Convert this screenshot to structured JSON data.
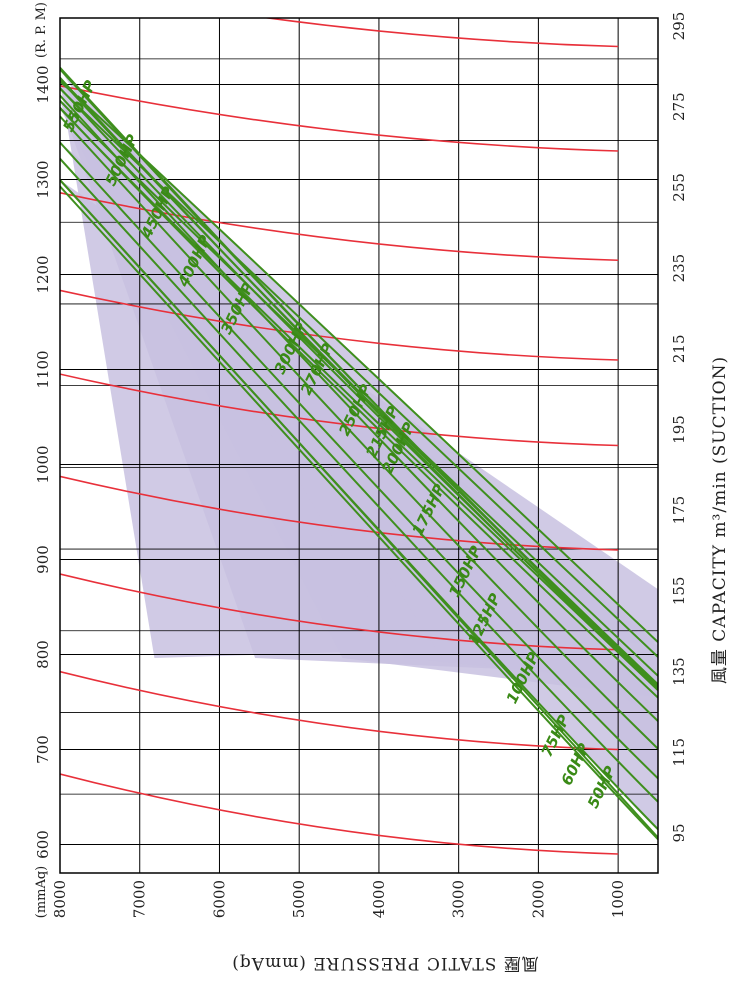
{
  "chart_data": {
    "type": "line",
    "layout": "rotated-90",
    "axes": {
      "rpm": {
        "label": "(R. P. M)",
        "ticks": [
          600,
          700,
          800,
          900,
          1000,
          1100,
          1200,
          1300,
          1400
        ],
        "range": [
          570,
          1470
        ]
      },
      "pressure": {
        "unit": "(mmAq)",
        "label": "風壓  STATIC  PRESSURE (mmAq)",
        "ticks": [
          8000,
          7000,
          6000,
          5000,
          4000,
          3000,
          2000,
          1000
        ],
        "range": [
          500,
          8000
        ]
      },
      "capacity": {
        "label": "風量 CAPACITY m³/min (SUCTION)",
        "ticks": [
          95,
          115,
          135,
          155,
          175,
          195,
          215,
          235,
          255,
          275,
          295
        ]
      }
    },
    "grid": true,
    "shaded_color": "#c8c1e0",
    "grid_color": "#000000",
    "rpm_curve_color": "#e8303a",
    "power_curve_color": "#3f8f1e",
    "rpm_curves": [
      590,
      700,
      805,
      910,
      1020,
      1110,
      1215,
      1330,
      1440
    ],
    "power_curves": [
      {
        "name": "550HP",
        "label_rpm": 1375,
        "label_pressure": 7700
      },
      {
        "name": "500HP",
        "label_rpm": 1318,
        "label_pressure": 7170
      },
      {
        "name": "450HP",
        "label_rpm": 1263,
        "label_pressure": 6720
      },
      {
        "name": "400HP",
        "label_rpm": 1212,
        "label_pressure": 6260
      },
      {
        "name": "350HP",
        "label_rpm": 1162,
        "label_pressure": 5720
      },
      {
        "name": "300HP",
        "label_rpm": 1120,
        "label_pressure": 5050
      },
      {
        "name": "270HP",
        "label_rpm": 1098,
        "label_pressure": 4720
      },
      {
        "name": "250HP",
        "label_rpm": 1055,
        "label_pressure": 4240
      },
      {
        "name": "215HP",
        "label_rpm": 1032,
        "label_pressure": 3900
      },
      {
        "name": "200HP",
        "label_rpm": 1015,
        "label_pressure": 3700
      },
      {
        "name": "175HP",
        "label_rpm": 950,
        "label_pressure": 3320
      },
      {
        "name": "150HP",
        "label_rpm": 885,
        "label_pressure": 2860
      },
      {
        "name": "125HP",
        "label_rpm": 835,
        "label_pressure": 2620
      },
      {
        "name": "100HP",
        "label_rpm": 773,
        "label_pressure": 2140
      },
      {
        "name": "75HP",
        "label_rpm": 712,
        "label_pressure": 1730
      },
      {
        "name": "60HP",
        "label_rpm": 682,
        "label_pressure": 1480
      },
      {
        "name": "50HP",
        "label_rpm": 658,
        "label_pressure": 1150
      }
    ]
  }
}
